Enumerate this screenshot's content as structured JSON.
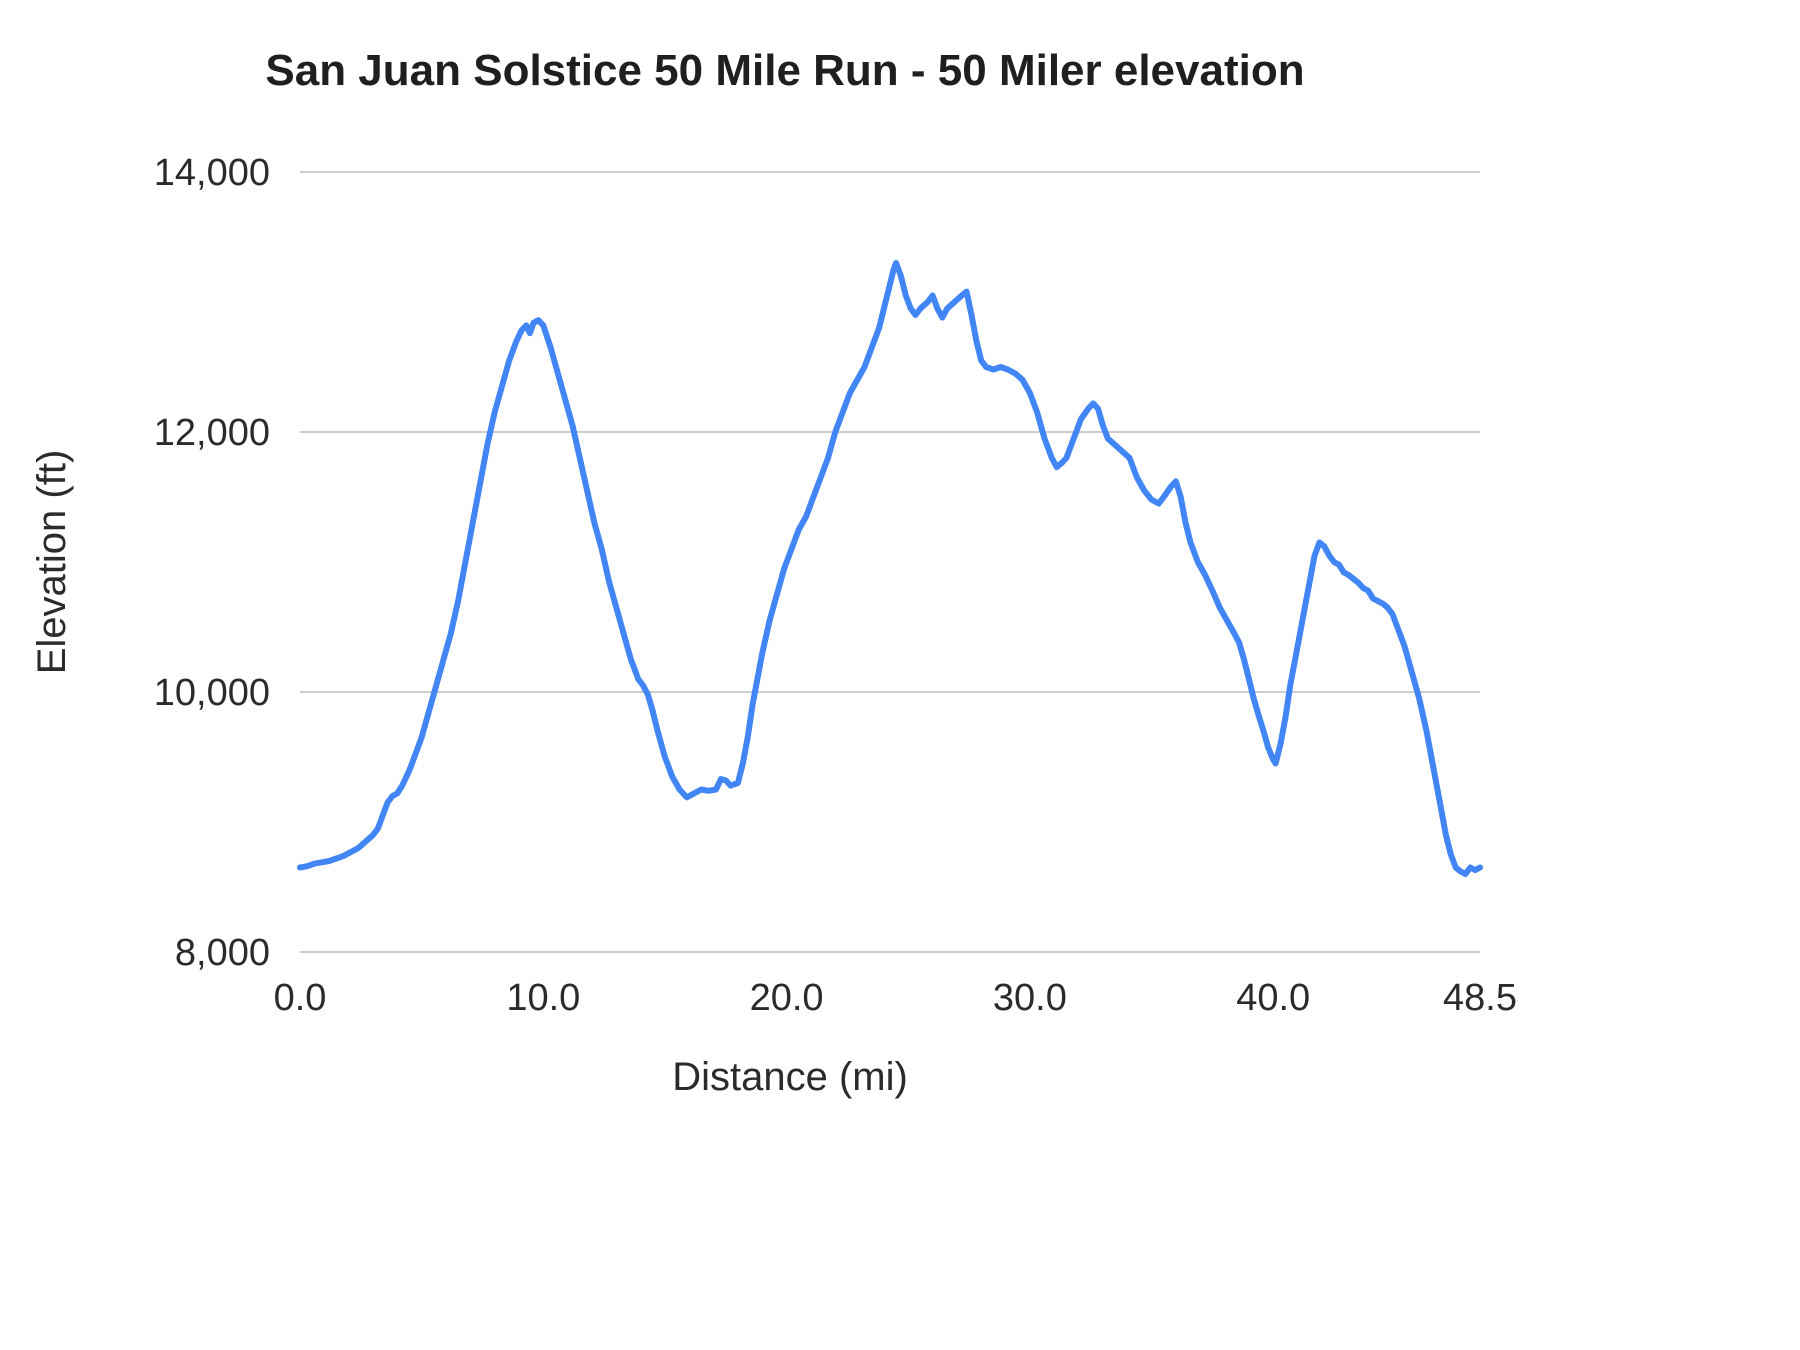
{
  "chart_data": {
    "type": "line",
    "title": "San Juan Solstice 50 Mile Run - 50 Miler elevation",
    "xlabel": "Distance (mi)",
    "ylabel": "Elevation (ft)",
    "xlim": [
      0,
      48.5
    ],
    "ylim": [
      8000,
      14000
    ],
    "grid": true,
    "legend": "none",
    "line_color": "#4285F4",
    "grid_color": "#cccccc",
    "x_ticks": [
      {
        "value": 0,
        "label": "0.0"
      },
      {
        "value": 10,
        "label": "10.0"
      },
      {
        "value": 20,
        "label": "20.0"
      },
      {
        "value": 30,
        "label": "30.0"
      },
      {
        "value": 40,
        "label": "40.0"
      },
      {
        "value": 48.5,
        "label": "48.5"
      }
    ],
    "y_ticks": [
      {
        "value": 8000,
        "label": "8,000"
      },
      {
        "value": 10000,
        "label": "10,000"
      },
      {
        "value": 12000,
        "label": "12,000"
      },
      {
        "value": 14000,
        "label": "14,000"
      }
    ],
    "series": [
      {
        "name": "50 Miler elevation",
        "points": [
          [
            0,
            8650
          ],
          [
            0.3,
            8660
          ],
          [
            0.6,
            8680
          ],
          [
            0.9,
            8690
          ],
          [
            1.2,
            8700
          ],
          [
            1.5,
            8720
          ],
          [
            1.8,
            8740
          ],
          [
            2.1,
            8770
          ],
          [
            2.4,
            8800
          ],
          [
            2.7,
            8850
          ],
          [
            3,
            8900
          ],
          [
            3.2,
            8950
          ],
          [
            3.4,
            9050
          ],
          [
            3.6,
            9150
          ],
          [
            3.8,
            9200
          ],
          [
            4,
            9220
          ],
          [
            4.2,
            9280
          ],
          [
            4.5,
            9400
          ],
          [
            4.8,
            9550
          ],
          [
            5,
            9650
          ],
          [
            5.3,
            9850
          ],
          [
            5.6,
            10050
          ],
          [
            5.9,
            10250
          ],
          [
            6.2,
            10450
          ],
          [
            6.5,
            10700
          ],
          [
            6.8,
            11000
          ],
          [
            7.1,
            11300
          ],
          [
            7.4,
            11600
          ],
          [
            7.7,
            11900
          ],
          [
            8,
            12150
          ],
          [
            8.3,
            12350
          ],
          [
            8.6,
            12550
          ],
          [
            8.9,
            12700
          ],
          [
            9.1,
            12780
          ],
          [
            9.3,
            12820
          ],
          [
            9.45,
            12760
          ],
          [
            9.6,
            12840
          ],
          [
            9.8,
            12860
          ],
          [
            10,
            12820
          ],
          [
            10.3,
            12650
          ],
          [
            10.6,
            12450
          ],
          [
            10.9,
            12250
          ],
          [
            11.2,
            12050
          ],
          [
            11.5,
            11800
          ],
          [
            11.8,
            11550
          ],
          [
            12.1,
            11300
          ],
          [
            12.4,
            11100
          ],
          [
            12.7,
            10850
          ],
          [
            13,
            10650
          ],
          [
            13.3,
            10450
          ],
          [
            13.6,
            10250
          ],
          [
            13.9,
            10100
          ],
          [
            14.1,
            10050
          ],
          [
            14.3,
            9980
          ],
          [
            14.5,
            9850
          ],
          [
            14.7,
            9700
          ],
          [
            15,
            9500
          ],
          [
            15.3,
            9350
          ],
          [
            15.6,
            9250
          ],
          [
            15.9,
            9190
          ],
          [
            16.2,
            9220
          ],
          [
            16.5,
            9250
          ],
          [
            16.8,
            9240
          ],
          [
            17.1,
            9250
          ],
          [
            17.3,
            9330
          ],
          [
            17.5,
            9320
          ],
          [
            17.7,
            9280
          ],
          [
            18,
            9300
          ],
          [
            18.2,
            9450
          ],
          [
            18.4,
            9650
          ],
          [
            18.6,
            9900
          ],
          [
            18.8,
            10100
          ],
          [
            19,
            10300
          ],
          [
            19.3,
            10550
          ],
          [
            19.6,
            10750
          ],
          [
            19.9,
            10950
          ],
          [
            20.2,
            11100
          ],
          [
            20.5,
            11250
          ],
          [
            20.8,
            11350
          ],
          [
            21.1,
            11500
          ],
          [
            21.4,
            11650
          ],
          [
            21.7,
            11800
          ],
          [
            22,
            12000
          ],
          [
            22.3,
            12150
          ],
          [
            22.6,
            12300
          ],
          [
            22.9,
            12400
          ],
          [
            23.2,
            12500
          ],
          [
            23.5,
            12650
          ],
          [
            23.8,
            12800
          ],
          [
            24,
            12950
          ],
          [
            24.2,
            13100
          ],
          [
            24.4,
            13250
          ],
          [
            24.5,
            13300
          ],
          [
            24.7,
            13200
          ],
          [
            24.9,
            13050
          ],
          [
            25.1,
            12950
          ],
          [
            25.3,
            12900
          ],
          [
            25.5,
            12950
          ],
          [
            25.8,
            13000
          ],
          [
            26,
            13050
          ],
          [
            26.2,
            12950
          ],
          [
            26.4,
            12880
          ],
          [
            26.6,
            12950
          ],
          [
            26.9,
            13000
          ],
          [
            27.2,
            13050
          ],
          [
            27.4,
            13080
          ],
          [
            27.6,
            12900
          ],
          [
            27.8,
            12700
          ],
          [
            28,
            12550
          ],
          [
            28.2,
            12500
          ],
          [
            28.5,
            12480
          ],
          [
            28.8,
            12500
          ],
          [
            29.1,
            12480
          ],
          [
            29.4,
            12450
          ],
          [
            29.7,
            12400
          ],
          [
            30,
            12300
          ],
          [
            30.3,
            12150
          ],
          [
            30.6,
            11950
          ],
          [
            30.9,
            11800
          ],
          [
            31.1,
            11730
          ],
          [
            31.3,
            11760
          ],
          [
            31.5,
            11800
          ],
          [
            31.8,
            11950
          ],
          [
            32.1,
            12100
          ],
          [
            32.4,
            12180
          ],
          [
            32.6,
            12220
          ],
          [
            32.8,
            12180
          ],
          [
            33,
            12050
          ],
          [
            33.2,
            11950
          ],
          [
            33.5,
            11900
          ],
          [
            33.8,
            11850
          ],
          [
            34.1,
            11800
          ],
          [
            34.4,
            11650
          ],
          [
            34.7,
            11550
          ],
          [
            35,
            11480
          ],
          [
            35.3,
            11450
          ],
          [
            35.5,
            11500
          ],
          [
            35.8,
            11580
          ],
          [
            36,
            11620
          ],
          [
            36.2,
            11500
          ],
          [
            36.4,
            11300
          ],
          [
            36.6,
            11150
          ],
          [
            36.9,
            11000
          ],
          [
            37.2,
            10900
          ],
          [
            37.5,
            10780
          ],
          [
            37.8,
            10650
          ],
          [
            38.1,
            10550
          ],
          [
            38.4,
            10450
          ],
          [
            38.6,
            10380
          ],
          [
            38.8,
            10250
          ],
          [
            39,
            10100
          ],
          [
            39.2,
            9950
          ],
          [
            39.4,
            9820
          ],
          [
            39.6,
            9700
          ],
          [
            39.8,
            9570
          ],
          [
            40,
            9480
          ],
          [
            40.1,
            9450
          ],
          [
            40.3,
            9600
          ],
          [
            40.5,
            9800
          ],
          [
            40.7,
            10050
          ],
          [
            40.9,
            10250
          ],
          [
            41.1,
            10450
          ],
          [
            41.3,
            10650
          ],
          [
            41.5,
            10850
          ],
          [
            41.7,
            11050
          ],
          [
            41.9,
            11150
          ],
          [
            42.1,
            11120
          ],
          [
            42.3,
            11050
          ],
          [
            42.5,
            11000
          ],
          [
            42.7,
            10980
          ],
          [
            42.9,
            10920
          ],
          [
            43.1,
            10900
          ],
          [
            43.3,
            10870
          ],
          [
            43.5,
            10840
          ],
          [
            43.7,
            10800
          ],
          [
            43.9,
            10780
          ],
          [
            44.1,
            10720
          ],
          [
            44.3,
            10700
          ],
          [
            44.5,
            10680
          ],
          [
            44.7,
            10650
          ],
          [
            44.9,
            10600
          ],
          [
            45.1,
            10500
          ],
          [
            45.4,
            10350
          ],
          [
            45.7,
            10150
          ],
          [
            46,
            9950
          ],
          [
            46.3,
            9700
          ],
          [
            46.6,
            9400
          ],
          [
            46.9,
            9100
          ],
          [
            47.1,
            8900
          ],
          [
            47.3,
            8750
          ],
          [
            47.5,
            8650
          ],
          [
            47.7,
            8620
          ],
          [
            47.9,
            8600
          ],
          [
            48.1,
            8650
          ],
          [
            48.3,
            8630
          ],
          [
            48.5,
            8650
          ]
        ]
      }
    ]
  }
}
